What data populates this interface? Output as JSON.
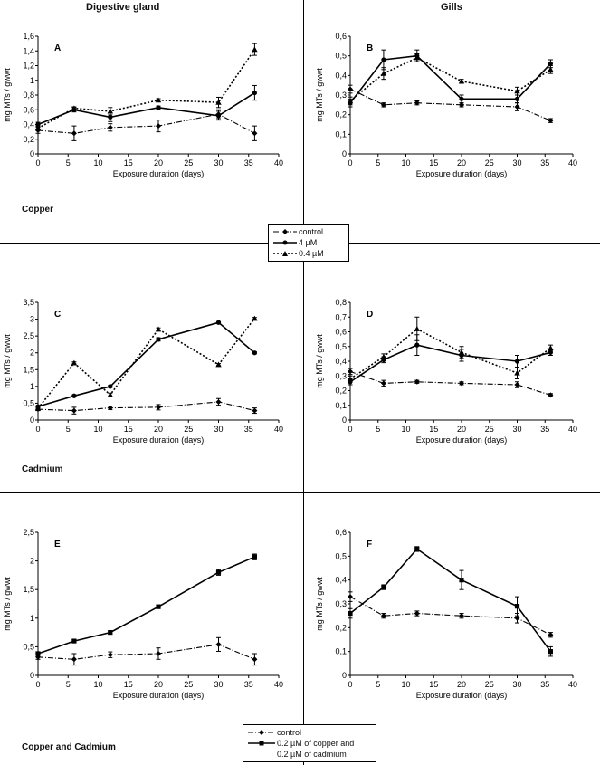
{
  "header": {
    "left_title": "Digestive gland",
    "right_title": "Gills"
  },
  "row_labels": {
    "copper": "Copper",
    "cadmium": "Cadmium",
    "both": "Copper and Cadmium"
  },
  "legend_top": {
    "items": [
      "control",
      "4 µM",
      "0.4 µM"
    ]
  },
  "legend_bottom": {
    "items": [
      "control",
      "0.2 µM of copper and",
      "0.2 µM of cadmium"
    ]
  },
  "chart_data": [
    {
      "id": "A",
      "type": "line",
      "panel_label": "A",
      "xlabel": "Exposure duration (days)",
      "ylabel": "mg MTs / gwwt",
      "xlim": [
        0,
        40
      ],
      "ylim": [
        0,
        1.6
      ],
      "xticks": [
        "0",
        "5",
        "10",
        "15",
        "20",
        "25",
        "30",
        "35",
        "40"
      ],
      "yticks": [
        "0",
        "0,2",
        "0,4",
        "0,6",
        "0,8",
        "1",
        "1,2",
        "1,4",
        "1,6"
      ],
      "x": [
        0,
        6,
        12,
        20,
        30,
        36
      ],
      "series": [
        {
          "name": "control",
          "style": "dashdot",
          "marker": "diamond",
          "values": [
            0.32,
            0.28,
            0.36,
            0.38,
            0.54,
            0.28
          ],
          "err": [
            0.04,
            0.1,
            0.05,
            0.08,
            0.06,
            0.1
          ]
        },
        {
          "name": "4 µM",
          "style": "solid",
          "marker": "circle",
          "values": [
            0.4,
            0.6,
            0.5,
            0.63,
            0.52,
            0.83
          ],
          "err": [
            0.03,
            0.03,
            0.06,
            0.02,
            0.06,
            0.1
          ]
        },
        {
          "name": "0.4 µM",
          "style": "dotted",
          "marker": "triangle",
          "values": [
            0.35,
            0.62,
            0.58,
            0.73,
            0.7,
            1.42
          ],
          "err": [
            0.03,
            0.02,
            0.05,
            0.02,
            0.07,
            0.08
          ]
        }
      ]
    },
    {
      "id": "B",
      "type": "line",
      "panel_label": "B",
      "xlabel": "Exposure duration (days)",
      "ylabel": "mg MTs / gwwt",
      "xlim": [
        0,
        40
      ],
      "ylim": [
        0,
        0.6
      ],
      "xticks": [
        "0",
        "5",
        "10",
        "15",
        "20",
        "25",
        "30",
        "35",
        "40"
      ],
      "yticks": [
        "0",
        "0,1",
        "0,2",
        "0,3",
        "0,4",
        "0,5",
        "0,6"
      ],
      "x": [
        0,
        6,
        12,
        20,
        30,
        36
      ],
      "series": [
        {
          "name": "control",
          "style": "dashdot",
          "marker": "diamond",
          "values": [
            0.33,
            0.25,
            0.26,
            0.25,
            0.24,
            0.17
          ],
          "err": [
            0.02,
            0.01,
            0.01,
            0.01,
            0.02,
            0.01
          ]
        },
        {
          "name": "4 µM",
          "style": "solid",
          "marker": "circle",
          "values": [
            0.26,
            0.48,
            0.5,
            0.28,
            0.28,
            0.46
          ],
          "err": [
            0.02,
            0.05,
            0.03,
            0.02,
            0.02,
            0.02
          ]
        },
        {
          "name": "0.4 µM",
          "style": "dotted",
          "marker": "triangle",
          "values": [
            0.27,
            0.41,
            0.49,
            0.37,
            0.32,
            0.43
          ],
          "err": [
            0.02,
            0.03,
            0.02,
            0.01,
            0.02,
            0.02
          ]
        }
      ]
    },
    {
      "id": "C",
      "type": "line",
      "panel_label": "C",
      "xlabel": "Exposure duration (days)",
      "ylabel": "mg MTs / gwwt",
      "xlim": [
        0,
        40
      ],
      "ylim": [
        0,
        3.5
      ],
      "xticks": [
        "0",
        "5",
        "10",
        "15",
        "20",
        "25",
        "30",
        "35",
        "40"
      ],
      "yticks": [
        "0",
        "0,5",
        "1",
        "1,5",
        "2",
        "2,5",
        "3",
        "3,5"
      ],
      "x": [
        0,
        6,
        12,
        20,
        30,
        36
      ],
      "series": [
        {
          "name": "control",
          "style": "dashdot",
          "marker": "diamond",
          "values": [
            0.32,
            0.28,
            0.36,
            0.38,
            0.54,
            0.28
          ],
          "err": [
            0.04,
            0.1,
            0.05,
            0.08,
            0.1,
            0.08
          ]
        },
        {
          "name": "4 µM",
          "style": "solid",
          "marker": "circle",
          "values": [
            0.4,
            0.72,
            1.0,
            2.4,
            2.9,
            2.0
          ],
          "err": [
            0.03,
            0.03,
            0.03,
            0.05,
            0.03,
            0.03
          ]
        },
        {
          "name": "0.4 µM",
          "style": "dotted",
          "marker": "triangle",
          "values": [
            0.35,
            1.7,
            0.75,
            2.7,
            1.65,
            3.02
          ],
          "err": [
            0.03,
            0.03,
            0.05,
            0.04,
            0.03,
            0.03
          ]
        }
      ]
    },
    {
      "id": "D",
      "type": "line",
      "panel_label": "D",
      "xlabel": "Exposure duration (days)",
      "ylabel": "mg MTs / gwwt",
      "xlim": [
        0,
        40
      ],
      "ylim": [
        0,
        0.8
      ],
      "xticks": [
        "0",
        "5",
        "10",
        "15",
        "20",
        "25",
        "30",
        "35",
        "40"
      ],
      "yticks": [
        "0",
        "0,1",
        "0,2",
        "0,3",
        "0,4",
        "0,5",
        "0,6",
        "0,7",
        "0,8"
      ],
      "x": [
        0,
        6,
        12,
        20,
        30,
        36
      ],
      "series": [
        {
          "name": "control",
          "style": "dashdot",
          "marker": "diamond",
          "values": [
            0.33,
            0.25,
            0.26,
            0.25,
            0.24,
            0.17
          ],
          "err": [
            0.02,
            0.02,
            0.01,
            0.01,
            0.02,
            0.01
          ]
        },
        {
          "name": "4 µM",
          "style": "solid",
          "marker": "circle",
          "values": [
            0.26,
            0.41,
            0.51,
            0.44,
            0.4,
            0.46
          ],
          "err": [
            0.02,
            0.02,
            0.07,
            0.04,
            0.04,
            0.02
          ]
        },
        {
          "name": "0.4 µM",
          "style": "dotted",
          "marker": "triangle",
          "values": [
            0.28,
            0.43,
            0.62,
            0.46,
            0.32,
            0.49
          ],
          "err": [
            0.02,
            0.02,
            0.08,
            0.04,
            0.04,
            0.02
          ]
        }
      ]
    },
    {
      "id": "E",
      "type": "line",
      "panel_label": "E",
      "xlabel": "Exposure duration (days)",
      "ylabel": "mg MTs / gwwt",
      "xlim": [
        0,
        40
      ],
      "ylim": [
        0,
        2.5
      ],
      "xticks": [
        "0",
        "5",
        "10",
        "15",
        "20",
        "25",
        "30",
        "35",
        "40"
      ],
      "yticks": [
        "0",
        "0,5",
        "1",
        "1,5",
        "2",
        "2,5"
      ],
      "x": [
        0,
        6,
        12,
        20,
        30,
        36
      ],
      "series": [
        {
          "name": "control",
          "style": "dashdot",
          "marker": "diamond",
          "values": [
            0.32,
            0.28,
            0.36,
            0.38,
            0.54,
            0.28
          ],
          "err": [
            0.04,
            0.1,
            0.05,
            0.1,
            0.12,
            0.1
          ]
        },
        {
          "name": "0.2 µM of copper and 0.2 µM of cadmium",
          "style": "solid",
          "marker": "square",
          "values": [
            0.38,
            0.6,
            0.75,
            1.2,
            1.8,
            2.07
          ],
          "err": [
            0.03,
            0.03,
            0.03,
            0.03,
            0.05,
            0.05
          ]
        }
      ]
    },
    {
      "id": "F",
      "type": "line",
      "panel_label": "F",
      "xlabel": "Exposure duration (days)",
      "ylabel": "mg MTs / gwwt",
      "xlim": [
        0,
        40
      ],
      "ylim": [
        0,
        0.6
      ],
      "xticks": [
        "0",
        "5",
        "10",
        "15",
        "20",
        "25",
        "30",
        "35",
        "40"
      ],
      "yticks": [
        "0",
        "0,1",
        "0,2",
        "0,3",
        "0,4",
        "0,5",
        "0,6"
      ],
      "x": [
        0,
        6,
        12,
        20,
        30,
        36
      ],
      "series": [
        {
          "name": "control",
          "style": "dashdot",
          "marker": "diamond",
          "values": [
            0.33,
            0.25,
            0.26,
            0.25,
            0.24,
            0.17
          ],
          "err": [
            0.02,
            0.01,
            0.01,
            0.01,
            0.02,
            0.01
          ]
        },
        {
          "name": "0.2 µM of copper and 0.2 µM of cadmium",
          "style": "solid",
          "marker": "square",
          "values": [
            0.26,
            0.37,
            0.53,
            0.4,
            0.29,
            0.1
          ],
          "err": [
            0.02,
            0.01,
            0.01,
            0.04,
            0.04,
            0.02
          ]
        }
      ]
    }
  ]
}
